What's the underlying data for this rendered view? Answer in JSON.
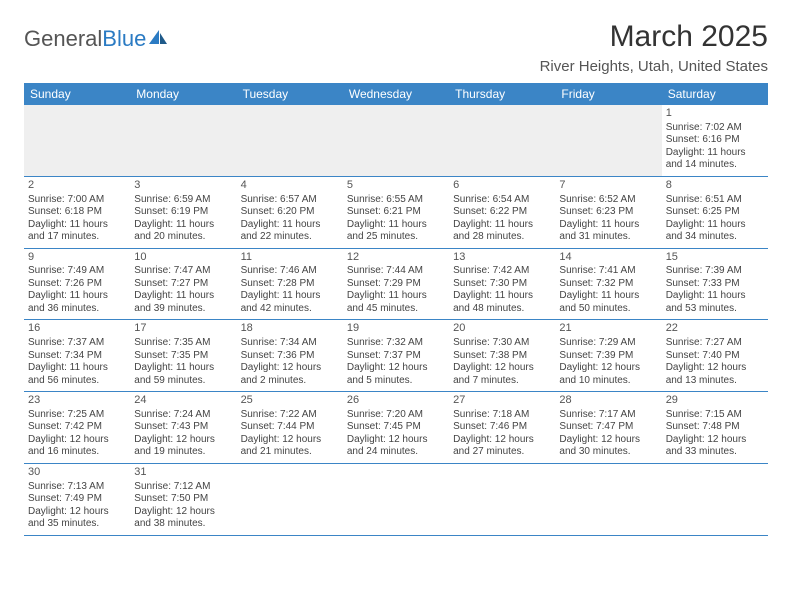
{
  "logo": {
    "text1": "General",
    "text2": "Blue"
  },
  "title": "March 2025",
  "location": "River Heights, Utah, United States",
  "colors": {
    "header_bg": "#3b85c6",
    "header_text": "#ffffff",
    "row_border": "#3b85c6",
    "empty_bg": "#efefef",
    "logo_blue": "#2b7bc3",
    "text": "#444444"
  },
  "weekdays": [
    "Sunday",
    "Monday",
    "Tuesday",
    "Wednesday",
    "Thursday",
    "Friday",
    "Saturday"
  ],
  "weeks": [
    [
      null,
      null,
      null,
      null,
      null,
      null,
      {
        "n": "1",
        "sr": "7:02 AM",
        "ss": "6:16 PM",
        "dl": "11 hours and 14 minutes."
      }
    ],
    [
      {
        "n": "2",
        "sr": "7:00 AM",
        "ss": "6:18 PM",
        "dl": "11 hours and 17 minutes."
      },
      {
        "n": "3",
        "sr": "6:59 AM",
        "ss": "6:19 PM",
        "dl": "11 hours and 20 minutes."
      },
      {
        "n": "4",
        "sr": "6:57 AM",
        "ss": "6:20 PM",
        "dl": "11 hours and 22 minutes."
      },
      {
        "n": "5",
        "sr": "6:55 AM",
        "ss": "6:21 PM",
        "dl": "11 hours and 25 minutes."
      },
      {
        "n": "6",
        "sr": "6:54 AM",
        "ss": "6:22 PM",
        "dl": "11 hours and 28 minutes."
      },
      {
        "n": "7",
        "sr": "6:52 AM",
        "ss": "6:23 PM",
        "dl": "11 hours and 31 minutes."
      },
      {
        "n": "8",
        "sr": "6:51 AM",
        "ss": "6:25 PM",
        "dl": "11 hours and 34 minutes."
      }
    ],
    [
      {
        "n": "9",
        "sr": "7:49 AM",
        "ss": "7:26 PM",
        "dl": "11 hours and 36 minutes."
      },
      {
        "n": "10",
        "sr": "7:47 AM",
        "ss": "7:27 PM",
        "dl": "11 hours and 39 minutes."
      },
      {
        "n": "11",
        "sr": "7:46 AM",
        "ss": "7:28 PM",
        "dl": "11 hours and 42 minutes."
      },
      {
        "n": "12",
        "sr": "7:44 AM",
        "ss": "7:29 PM",
        "dl": "11 hours and 45 minutes."
      },
      {
        "n": "13",
        "sr": "7:42 AM",
        "ss": "7:30 PM",
        "dl": "11 hours and 48 minutes."
      },
      {
        "n": "14",
        "sr": "7:41 AM",
        "ss": "7:32 PM",
        "dl": "11 hours and 50 minutes."
      },
      {
        "n": "15",
        "sr": "7:39 AM",
        "ss": "7:33 PM",
        "dl": "11 hours and 53 minutes."
      }
    ],
    [
      {
        "n": "16",
        "sr": "7:37 AM",
        "ss": "7:34 PM",
        "dl": "11 hours and 56 minutes."
      },
      {
        "n": "17",
        "sr": "7:35 AM",
        "ss": "7:35 PM",
        "dl": "11 hours and 59 minutes."
      },
      {
        "n": "18",
        "sr": "7:34 AM",
        "ss": "7:36 PM",
        "dl": "12 hours and 2 minutes."
      },
      {
        "n": "19",
        "sr": "7:32 AM",
        "ss": "7:37 PM",
        "dl": "12 hours and 5 minutes."
      },
      {
        "n": "20",
        "sr": "7:30 AM",
        "ss": "7:38 PM",
        "dl": "12 hours and 7 minutes."
      },
      {
        "n": "21",
        "sr": "7:29 AM",
        "ss": "7:39 PM",
        "dl": "12 hours and 10 minutes."
      },
      {
        "n": "22",
        "sr": "7:27 AM",
        "ss": "7:40 PM",
        "dl": "12 hours and 13 minutes."
      }
    ],
    [
      {
        "n": "23",
        "sr": "7:25 AM",
        "ss": "7:42 PM",
        "dl": "12 hours and 16 minutes."
      },
      {
        "n": "24",
        "sr": "7:24 AM",
        "ss": "7:43 PM",
        "dl": "12 hours and 19 minutes."
      },
      {
        "n": "25",
        "sr": "7:22 AM",
        "ss": "7:44 PM",
        "dl": "12 hours and 21 minutes."
      },
      {
        "n": "26",
        "sr": "7:20 AM",
        "ss": "7:45 PM",
        "dl": "12 hours and 24 minutes."
      },
      {
        "n": "27",
        "sr": "7:18 AM",
        "ss": "7:46 PM",
        "dl": "12 hours and 27 minutes."
      },
      {
        "n": "28",
        "sr": "7:17 AM",
        "ss": "7:47 PM",
        "dl": "12 hours and 30 minutes."
      },
      {
        "n": "29",
        "sr": "7:15 AM",
        "ss": "7:48 PM",
        "dl": "12 hours and 33 minutes."
      }
    ],
    [
      {
        "n": "30",
        "sr": "7:13 AM",
        "ss": "7:49 PM",
        "dl": "12 hours and 35 minutes."
      },
      {
        "n": "31",
        "sr": "7:12 AM",
        "ss": "7:50 PM",
        "dl": "12 hours and 38 minutes."
      },
      null,
      null,
      null,
      null,
      null
    ]
  ],
  "labels": {
    "sunrise": "Sunrise:",
    "sunset": "Sunset:",
    "daylight": "Daylight:"
  }
}
